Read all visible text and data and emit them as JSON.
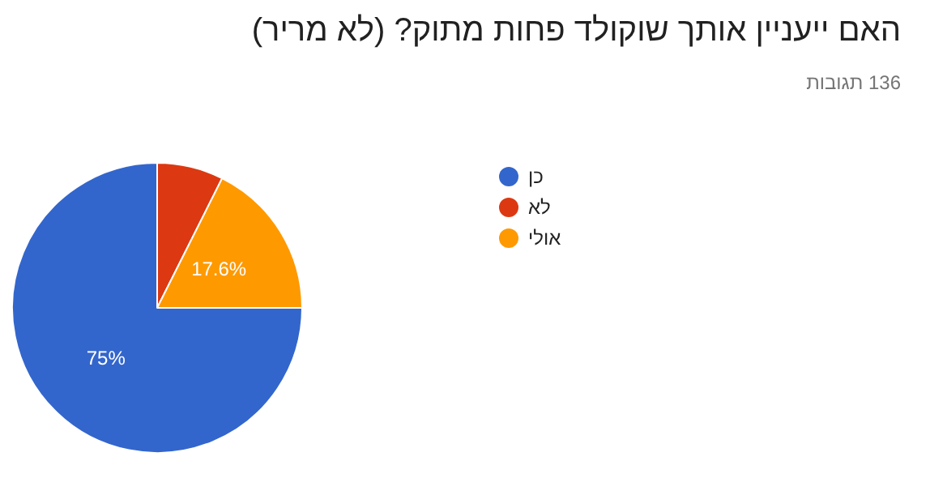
{
  "chart_data": {
    "type": "pie",
    "title": "האם ייעניין אותך שוקולד פחות מתוק? (לא מריר)",
    "subtitle": "136 תגובות",
    "categories": [
      "כן",
      "לא",
      "אולי"
    ],
    "values": [
      75,
      7.4,
      17.6
    ],
    "colors": [
      "#3366cc",
      "#dc3912",
      "#ff9900"
    ],
    "value_labels": [
      "75%",
      null,
      "17.6%"
    ],
    "legend": "right"
  }
}
